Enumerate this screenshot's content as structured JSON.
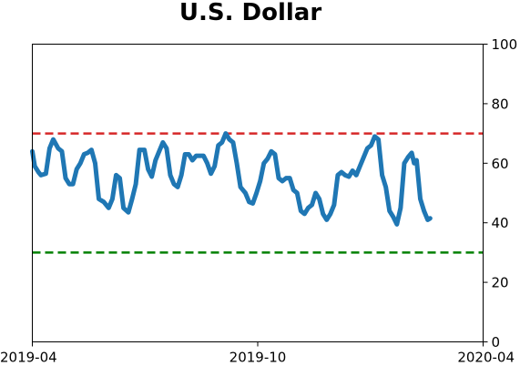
{
  "chart_data": {
    "type": "line",
    "title": "U.S. Dollar",
    "xlabel": "",
    "ylabel": "",
    "xlim": [
      "2019-04-01",
      "2020-04-01"
    ],
    "ylim": [
      0,
      100
    ],
    "y_axis_side": "right",
    "x_ticks": [
      {
        "value": "2019-04-01",
        "label": "2019-04"
      },
      {
        "value": "2019-10-01",
        "label": "2019-10"
      },
      {
        "value": "2020-04-01",
        "label": "2020-04"
      }
    ],
    "y_ticks": [
      0,
      20,
      40,
      60,
      80,
      100
    ],
    "grid": false,
    "reference_lines": [
      {
        "y": 70,
        "color": "#d62728",
        "style": "dashed"
      },
      {
        "y": 30,
        "color": "#008000",
        "style": "dashed"
      }
    ],
    "series": [
      {
        "color": "#1f77b4",
        "points": [
          [
            "2019-04-01",
            64
          ],
          [
            "2019-04-03",
            59
          ],
          [
            "2019-04-06",
            57
          ],
          [
            "2019-04-08",
            56
          ],
          [
            "2019-04-12",
            56.5
          ],
          [
            "2019-04-15",
            65
          ],
          [
            "2019-04-18",
            68
          ],
          [
            "2019-04-22",
            65
          ],
          [
            "2019-04-25",
            64
          ],
          [
            "2019-04-28",
            55
          ],
          [
            "2019-05-01",
            53
          ],
          [
            "2019-05-04",
            53
          ],
          [
            "2019-05-07",
            58
          ],
          [
            "2019-05-10",
            60
          ],
          [
            "2019-05-13",
            63
          ],
          [
            "2019-05-16",
            63.5
          ],
          [
            "2019-05-19",
            64.5
          ],
          [
            "2019-05-22",
            60
          ],
          [
            "2019-05-25",
            48
          ],
          [
            "2019-05-29",
            47
          ],
          [
            "2019-06-02",
            45
          ],
          [
            "2019-06-05",
            48
          ],
          [
            "2019-06-08",
            56
          ],
          [
            "2019-06-11",
            55
          ],
          [
            "2019-06-14",
            45
          ],
          [
            "2019-06-18",
            43.5
          ],
          [
            "2019-06-21",
            48
          ],
          [
            "2019-06-24",
            53
          ],
          [
            "2019-06-27",
            64.5
          ],
          [
            "2019-07-01",
            64.5
          ],
          [
            "2019-07-04",
            58
          ],
          [
            "2019-07-07",
            55.5
          ],
          [
            "2019-07-10",
            61
          ],
          [
            "2019-07-13",
            64
          ],
          [
            "2019-07-16",
            67
          ],
          [
            "2019-07-19",
            65
          ],
          [
            "2019-07-22",
            56
          ],
          [
            "2019-07-25",
            53
          ],
          [
            "2019-07-28",
            52
          ],
          [
            "2019-07-31",
            56
          ],
          [
            "2019-08-03",
            63
          ],
          [
            "2019-08-06",
            63
          ],
          [
            "2019-08-09",
            61
          ],
          [
            "2019-08-12",
            62.5
          ],
          [
            "2019-08-15",
            62.5
          ],
          [
            "2019-08-18",
            62.5
          ],
          [
            "2019-08-21",
            60
          ],
          [
            "2019-08-24",
            56.5
          ],
          [
            "2019-08-27",
            59
          ],
          [
            "2019-08-30",
            66
          ],
          [
            "2019-09-02",
            67
          ],
          [
            "2019-09-05",
            70
          ],
          [
            "2019-09-08",
            68
          ],
          [
            "2019-09-11",
            67
          ],
          [
            "2019-09-14",
            60
          ],
          [
            "2019-09-17",
            52
          ],
          [
            "2019-09-21",
            50
          ],
          [
            "2019-09-24",
            47
          ],
          [
            "2019-09-27",
            46.5
          ],
          [
            "2019-09-30",
            50
          ],
          [
            "2019-10-03",
            54
          ],
          [
            "2019-10-06",
            60
          ],
          [
            "2019-10-09",
            61.5
          ],
          [
            "2019-10-12",
            64
          ],
          [
            "2019-10-15",
            63
          ],
          [
            "2019-10-18",
            55
          ],
          [
            "2019-10-21",
            54
          ],
          [
            "2019-10-24",
            55
          ],
          [
            "2019-10-27",
            55
          ],
          [
            "2019-10-30",
            51
          ],
          [
            "2019-11-02",
            50
          ],
          [
            "2019-11-05",
            44
          ],
          [
            "2019-11-08",
            43
          ],
          [
            "2019-11-11",
            45
          ],
          [
            "2019-11-14",
            46
          ],
          [
            "2019-11-17",
            50
          ],
          [
            "2019-11-20",
            48
          ],
          [
            "2019-11-23",
            43
          ],
          [
            "2019-11-26",
            41
          ],
          [
            "2019-11-29",
            43
          ],
          [
            "2019-12-02",
            46
          ],
          [
            "2019-12-05",
            56
          ],
          [
            "2019-12-08",
            57
          ],
          [
            "2019-12-11",
            56
          ],
          [
            "2019-12-14",
            55.5
          ],
          [
            "2019-12-17",
            57.5
          ],
          [
            "2019-12-20",
            56
          ],
          [
            "2019-12-23",
            59
          ],
          [
            "2019-12-26",
            62
          ],
          [
            "2019-12-29",
            65
          ],
          [
            "2020-01-01",
            66
          ],
          [
            "2020-01-04",
            69
          ],
          [
            "2020-01-07",
            68
          ],
          [
            "2020-01-10",
            56
          ],
          [
            "2020-01-13",
            52
          ],
          [
            "2020-01-16",
            44
          ],
          [
            "2020-01-19",
            42
          ],
          [
            "2020-01-22",
            39.5
          ],
          [
            "2020-01-25",
            45
          ],
          [
            "2020-01-28",
            60
          ],
          [
            "2020-01-31",
            62
          ],
          [
            "2020-02-03",
            63.5
          ],
          [
            "2020-02-05",
            60
          ],
          [
            "2020-02-07",
            61
          ],
          [
            "2020-02-10",
            48
          ],
          [
            "2020-02-13",
            44
          ],
          [
            "2020-02-16",
            41
          ],
          [
            "2020-02-18",
            41.5
          ]
        ]
      }
    ]
  }
}
